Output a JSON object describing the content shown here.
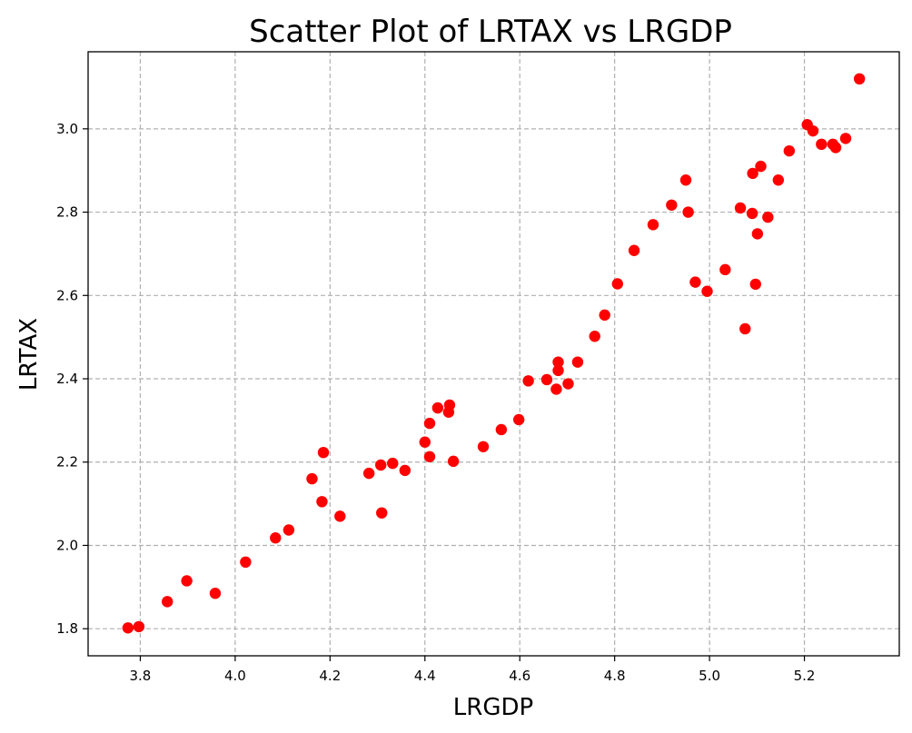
{
  "chart_data": {
    "type": "scatter",
    "title": "Scatter Plot of LRTAX vs LRGDP",
    "xlabel": "LRGDP",
    "ylabel": "LRTAX",
    "xlim": [
      3.69,
      5.4
    ],
    "ylim": [
      1.735,
      3.185
    ],
    "xticks": [
      3.8,
      4.0,
      4.2,
      4.4,
      4.6,
      4.8,
      5.0,
      5.2
    ],
    "yticks": [
      1.8,
      2.0,
      2.2,
      2.4,
      2.6,
      2.8,
      3.0
    ],
    "xtick_labels": [
      "3.8",
      "4.0",
      "4.2",
      "4.4",
      "4.6",
      "4.8",
      "5.0",
      "5.2"
    ],
    "ytick_labels": [
      "1.8",
      "2.0",
      "2.2",
      "2.4",
      "2.6",
      "2.8",
      "3.0"
    ],
    "grid": true,
    "marker_color": "#ff0000",
    "points": [
      [
        3.774,
        1.802
      ],
      [
        3.797,
        1.805
      ],
      [
        3.857,
        1.865
      ],
      [
        3.898,
        1.915
      ],
      [
        3.958,
        1.885
      ],
      [
        4.022,
        1.96
      ],
      [
        4.085,
        2.018
      ],
      [
        4.113,
        2.037
      ],
      [
        4.162,
        2.16
      ],
      [
        4.183,
        2.105
      ],
      [
        4.186,
        2.223
      ],
      [
        4.221,
        2.07
      ],
      [
        4.282,
        2.173
      ],
      [
        4.307,
        2.193
      ],
      [
        4.309,
        2.078
      ],
      [
        4.332,
        2.197
      ],
      [
        4.358,
        2.18
      ],
      [
        4.4,
        2.248
      ],
      [
        4.41,
        2.213
      ],
      [
        4.41,
        2.293
      ],
      [
        4.427,
        2.33
      ],
      [
        4.45,
        2.32
      ],
      [
        4.452,
        2.337
      ],
      [
        4.46,
        2.202
      ],
      [
        4.523,
        2.237
      ],
      [
        4.561,
        2.278
      ],
      [
        4.598,
        2.302
      ],
      [
        4.618,
        2.395
      ],
      [
        4.657,
        2.398
      ],
      [
        4.677,
        2.375
      ],
      [
        4.681,
        2.42
      ],
      [
        4.681,
        2.44
      ],
      [
        4.702,
        2.388
      ],
      [
        4.722,
        2.44
      ],
      [
        4.758,
        2.502
      ],
      [
        4.779,
        2.553
      ],
      [
        4.806,
        2.628
      ],
      [
        4.841,
        2.708
      ],
      [
        4.881,
        2.77
      ],
      [
        4.92,
        2.817
      ],
      [
        4.95,
        2.877
      ],
      [
        4.955,
        2.8
      ],
      [
        4.97,
        2.632
      ],
      [
        4.995,
        2.61
      ],
      [
        5.033,
        2.662
      ],
      [
        5.065,
        2.81
      ],
      [
        5.075,
        2.52
      ],
      [
        5.09,
        2.797
      ],
      [
        5.091,
        2.893
      ],
      [
        5.097,
        2.627
      ],
      [
        5.101,
        2.748
      ],
      [
        5.108,
        2.91
      ],
      [
        5.123,
        2.788
      ],
      [
        5.145,
        2.877
      ],
      [
        5.168,
        2.947
      ],
      [
        5.206,
        3.01
      ],
      [
        5.218,
        2.995
      ],
      [
        5.236,
        2.963
      ],
      [
        5.26,
        2.963
      ],
      [
        5.266,
        2.955
      ],
      [
        5.287,
        2.977
      ],
      [
        5.316,
        3.12
      ]
    ]
  }
}
